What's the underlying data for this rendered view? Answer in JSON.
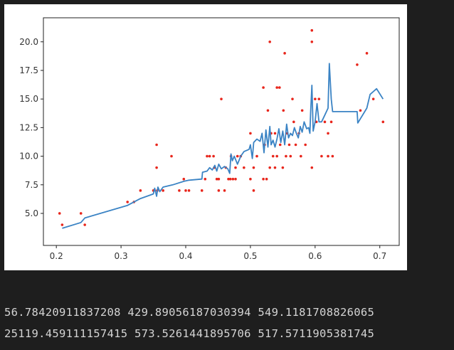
{
  "output": {
    "line1": "56.78420911837208 429.89056187030394 549.1181708826065",
    "line2": "25119.459111157415 573.5261441895706 517.5711905381745"
  },
  "chart_data": {
    "type": "scatter",
    "xlim": [
      0.18,
      0.73
    ],
    "ylim": [
      2.2,
      22.1
    ],
    "grid": false,
    "xticks": [
      0.2,
      0.3,
      0.4,
      0.5,
      0.6,
      0.7
    ],
    "xtick_labels": [
      "0.2",
      "0.3",
      "0.4",
      "0.5",
      "0.6",
      "0.7"
    ],
    "yticks": [
      5.0,
      7.5,
      10.0,
      12.5,
      15.0,
      17.5,
      20.0
    ],
    "ytick_labels": [
      "5.0",
      "7.5",
      "10.0",
      "12.5",
      "15.0",
      "17.5",
      "20.0"
    ],
    "scatter_color": "#e8261c",
    "line_color": "#3a83c4",
    "points": [
      [
        0.205,
        5
      ],
      [
        0.209,
        4
      ],
      [
        0.238,
        5
      ],
      [
        0.244,
        4
      ],
      [
        0.31,
        6
      ],
      [
        0.32,
        6
      ],
      [
        0.33,
        7
      ],
      [
        0.35,
        7
      ],
      [
        0.355,
        9
      ],
      [
        0.355,
        11
      ],
      [
        0.356,
        7
      ],
      [
        0.365,
        7
      ],
      [
        0.378,
        10
      ],
      [
        0.39,
        7
      ],
      [
        0.397,
        8
      ],
      [
        0.4,
        7
      ],
      [
        0.405,
        7
      ],
      [
        0.425,
        7
      ],
      [
        0.43,
        8
      ],
      [
        0.433,
        10
      ],
      [
        0.437,
        10
      ],
      [
        0.443,
        10
      ],
      [
        0.444,
        9
      ],
      [
        0.448,
        8
      ],
      [
        0.451,
        7
      ],
      [
        0.451,
        8
      ],
      [
        0.455,
        15
      ],
      [
        0.46,
        7
      ],
      [
        0.462,
        9
      ],
      [
        0.466,
        8
      ],
      [
        0.469,
        8
      ],
      [
        0.47,
        10
      ],
      [
        0.473,
        8
      ],
      [
        0.477,
        8
      ],
      [
        0.477,
        9
      ],
      [
        0.48,
        10
      ],
      [
        0.485,
        10
      ],
      [
        0.49,
        9
      ],
      [
        0.5,
        8
      ],
      [
        0.5,
        12
      ],
      [
        0.505,
        7
      ],
      [
        0.505,
        9
      ],
      [
        0.51,
        10
      ],
      [
        0.52,
        8
      ],
      [
        0.52,
        16
      ],
      [
        0.522,
        11
      ],
      [
        0.525,
        8
      ],
      [
        0.527,
        14
      ],
      [
        0.53,
        20
      ],
      [
        0.53,
        9
      ],
      [
        0.532,
        12
      ],
      [
        0.535,
        10
      ],
      [
        0.538,
        9
      ],
      [
        0.538,
        12
      ],
      [
        0.541,
        10
      ],
      [
        0.541,
        16
      ],
      [
        0.545,
        16
      ],
      [
        0.546,
        11
      ],
      [
        0.55,
        9
      ],
      [
        0.551,
        14
      ],
      [
        0.553,
        19
      ],
      [
        0.555,
        10
      ],
      [
        0.557,
        12
      ],
      [
        0.56,
        11
      ],
      [
        0.562,
        10
      ],
      [
        0.565,
        15
      ],
      [
        0.567,
        13
      ],
      [
        0.57,
        11
      ],
      [
        0.575,
        12
      ],
      [
        0.578,
        10
      ],
      [
        0.58,
        14
      ],
      [
        0.585,
        11
      ],
      [
        0.595,
        21
      ],
      [
        0.595,
        20
      ],
      [
        0.595,
        9
      ],
      [
        0.6,
        15
      ],
      [
        0.602,
        13
      ],
      [
        0.606,
        15
      ],
      [
        0.61,
        10
      ],
      [
        0.615,
        13
      ],
      [
        0.62,
        12
      ],
      [
        0.62,
        10
      ],
      [
        0.625,
        13
      ],
      [
        0.627,
        10
      ],
      [
        0.665,
        18
      ],
      [
        0.67,
        14
      ],
      [
        0.68,
        19
      ],
      [
        0.69,
        15
      ],
      [
        0.705,
        13
      ]
    ],
    "line": [
      [
        0.209,
        3.7
      ],
      [
        0.238,
        4.2
      ],
      [
        0.244,
        4.6
      ],
      [
        0.31,
        5.7
      ],
      [
        0.33,
        6.3
      ],
      [
        0.35,
        6.7
      ],
      [
        0.352,
        7.2
      ],
      [
        0.355,
        6.5
      ],
      [
        0.357,
        7.3
      ],
      [
        0.36,
        6.9
      ],
      [
        0.365,
        7.3
      ],
      [
        0.38,
        7.5
      ],
      [
        0.397,
        7.8
      ],
      [
        0.405,
        7.9
      ],
      [
        0.425,
        8.0
      ],
      [
        0.426,
        8.6
      ],
      [
        0.433,
        8.7
      ],
      [
        0.437,
        9.0
      ],
      [
        0.441,
        8.8
      ],
      [
        0.445,
        9.2
      ],
      [
        0.448,
        8.7
      ],
      [
        0.451,
        9.3
      ],
      [
        0.455,
        8.9
      ],
      [
        0.46,
        9.1
      ],
      [
        0.465,
        8.9
      ],
      [
        0.468,
        8.5
      ],
      [
        0.47,
        10.2
      ],
      [
        0.472,
        9.6
      ],
      [
        0.475,
        10.0
      ],
      [
        0.48,
        9.3
      ],
      [
        0.485,
        10.0
      ],
      [
        0.49,
        10.4
      ],
      [
        0.498,
        10.6
      ],
      [
        0.5,
        11.0
      ],
      [
        0.503,
        9.8
      ],
      [
        0.505,
        11.2
      ],
      [
        0.51,
        11.5
      ],
      [
        0.515,
        11.3
      ],
      [
        0.518,
        12.0
      ],
      [
        0.521,
        10.3
      ],
      [
        0.524,
        12.3
      ],
      [
        0.527,
        10.8
      ],
      [
        0.53,
        12.6
      ],
      [
        0.532,
        11.0
      ],
      [
        0.535,
        11.4
      ],
      [
        0.538,
        10.8
      ],
      [
        0.541,
        11.5
      ],
      [
        0.544,
        12.4
      ],
      [
        0.547,
        11.2
      ],
      [
        0.55,
        12.2
      ],
      [
        0.553,
        11.0
      ],
      [
        0.556,
        12.8
      ],
      [
        0.559,
        11.6
      ],
      [
        0.562,
        12.0
      ],
      [
        0.565,
        11.8
      ],
      [
        0.568,
        12.5
      ],
      [
        0.571,
        12.0
      ],
      [
        0.574,
        11.6
      ],
      [
        0.577,
        12.6
      ],
      [
        0.58,
        12.1
      ],
      [
        0.583,
        13.0
      ],
      [
        0.587,
        12.4
      ],
      [
        0.59,
        12.5
      ],
      [
        0.592,
        12.0
      ],
      [
        0.593,
        13.8
      ],
      [
        0.595,
        16.2
      ],
      [
        0.597,
        12.2
      ],
      [
        0.6,
        13.0
      ],
      [
        0.603,
        14.6
      ],
      [
        0.606,
        13.0
      ],
      [
        0.61,
        13.0
      ],
      [
        0.615,
        13.6
      ],
      [
        0.62,
        14.2
      ],
      [
        0.622,
        18.1
      ],
      [
        0.625,
        15.0
      ],
      [
        0.627,
        13.9
      ],
      [
        0.665,
        13.9
      ],
      [
        0.666,
        12.9
      ],
      [
        0.68,
        14.2
      ],
      [
        0.685,
        15.4
      ],
      [
        0.695,
        15.9
      ],
      [
        0.705,
        15.0
      ]
    ]
  }
}
